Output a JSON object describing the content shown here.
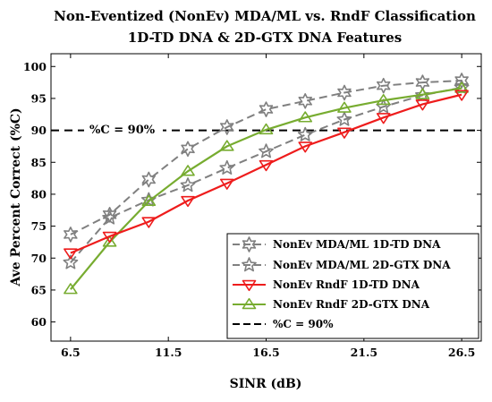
{
  "chart_data": {
    "type": "line",
    "title": [
      "Non-Eventized (NonEv) MDA/ML vs. RndF Classification",
      "1D-TD DNA & 2D-GTX DNA Features"
    ],
    "xlabel": "SINR (dB)",
    "ylabel": "Ave Percent Correct (%C)",
    "xlim": [
      5.5,
      27.5
    ],
    "ylim": [
      57,
      102
    ],
    "xticks": [
      6.5,
      11.5,
      16.5,
      21.5,
      26.5
    ],
    "xtick_labels": [
      "6.5",
      "11.5",
      "16.5",
      "21.5",
      "26.5"
    ],
    "yticks": [
      60,
      65,
      70,
      75,
      80,
      85,
      90,
      95,
      100
    ],
    "ytick_labels": [
      "60",
      "65",
      "70",
      "75",
      "80",
      "85",
      "90",
      "95",
      "100"
    ],
    "grid": false,
    "legend_position": "bottom-right",
    "x": [
      6.5,
      8.5,
      10.5,
      12.5,
      14.5,
      16.5,
      18.5,
      20.5,
      22.5,
      24.5,
      26.5
    ],
    "series": [
      {
        "name": "NonEv MDA/ML 1D-TD DNA",
        "color": "#808080",
        "dash": "dashed",
        "marker": "hexagram-open",
        "values": [
          73.7,
          76.8,
          82.3,
          87.1,
          90.5,
          93.3,
          94.6,
          95.9,
          97.0,
          97.5,
          97.8
        ]
      },
      {
        "name": "NonEv MDA/ML 2D-GTX DNA",
        "color": "#808080",
        "dash": "dashed",
        "marker": "pentagram-open",
        "values": [
          69.3,
          76.3,
          79.1,
          81.4,
          84.1,
          86.7,
          89.3,
          91.7,
          93.7,
          95.5,
          96.7
        ]
      },
      {
        "name": "NonEv RndF 1D-TD DNA",
        "color": "#ee1c1c",
        "dash": "solid",
        "marker": "triangle-down-open",
        "values": [
          70.8,
          73.4,
          75.7,
          79.0,
          81.7,
          84.6,
          87.5,
          89.7,
          92.0,
          94.1,
          95.6
        ]
      },
      {
        "name": "NonEv RndF 2D-GTX DNA",
        "color": "#77ac30",
        "dash": "solid",
        "marker": "triangle-up-open",
        "values": [
          65.1,
          72.5,
          78.9,
          83.6,
          87.5,
          90.1,
          92.0,
          93.5,
          94.7,
          95.6,
          96.6
        ]
      }
    ],
    "reference_line": {
      "y": 90,
      "label": "%C = 90%",
      "legend_label": "%C = 90%",
      "color": "#000000",
      "dash": "dashed"
    }
  }
}
